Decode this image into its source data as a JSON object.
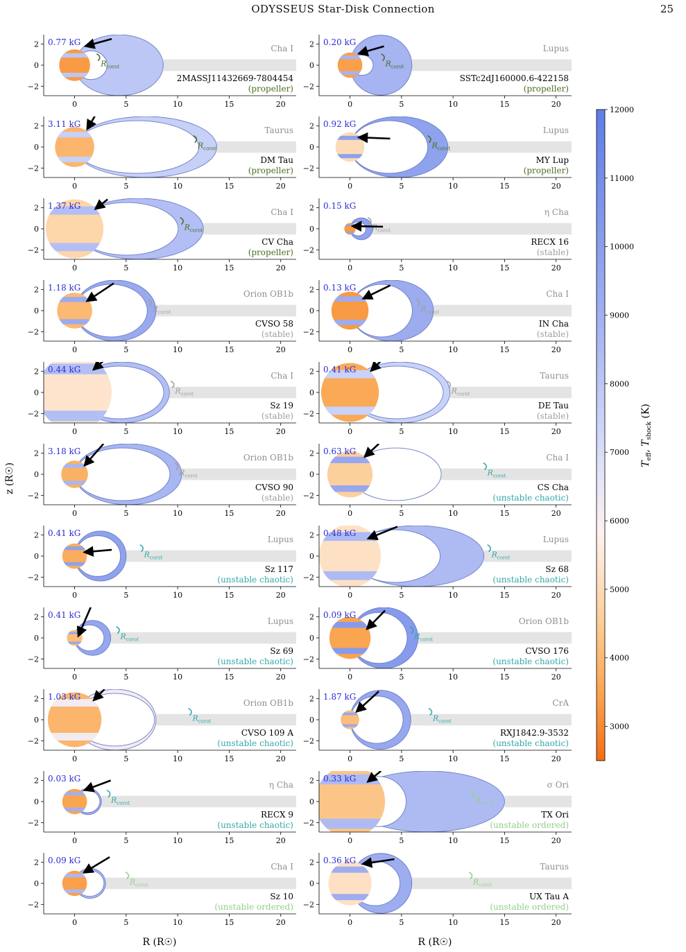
{
  "header": {
    "running_head": "ODYSSEUS Star-Disk Connection",
    "page_number": "25"
  },
  "axes": {
    "xlabel": "R (R☉)",
    "ylabel": "z (R☉)",
    "xticks": [
      0,
      5,
      10,
      15,
      20
    ],
    "yticks": [
      -2,
      0,
      2
    ],
    "xlim": [
      -3,
      21.5
    ],
    "ylim": [
      -2.9,
      2.9
    ],
    "rcorot_label": "R",
    "rcorot_sub": "corot"
  },
  "colorbar": {
    "label_html": "T_eff, T_shock (K)",
    "label_main": "T",
    "label_sub1": "eff",
    "label_sep": ", T",
    "label_sub2": "shock",
    "label_unit": " (K)",
    "ticks": [
      3000,
      4000,
      5000,
      6000,
      7000,
      8000,
      9000,
      10000,
      11000,
      12000
    ],
    "range": [
      2500,
      12000
    ]
  },
  "regime_colors": {
    "propeller": "#4b6e24",
    "stable": "#9e9e9e",
    "unstable chaotic": "#34a7a7",
    "unstable ordered": "#92cf8a"
  },
  "panels": [
    {
      "b": "0.77 kG",
      "region": "Cha I",
      "name": "2MASSJ11432669-7804454",
      "regime": "propeller",
      "rstar": 1.5,
      "tstar": 3300,
      "rin": 3.1,
      "rout": 8.6,
      "tshock": 8000,
      "rc": 2.4,
      "spot": 0.5,
      "arrow": [
        1.4,
        1.9,
        3.6,
        2.5
      ]
    },
    {
      "b": "0.20 kG",
      "region": "Lupus",
      "name": "SSTc2dJ160000.6-422158",
      "regime": "propeller",
      "rstar": 1.2,
      "tstar": 3400,
      "rin": 2.2,
      "rout": 6.0,
      "tshock": 8800,
      "rc": 3.3,
      "spot": 0.45,
      "arrow": [
        1.2,
        1.2,
        3.3,
        1.8
      ]
    },
    {
      "b": "3.11 kG",
      "region": "Taurus",
      "name": "DM Tau",
      "regime": "propeller",
      "rstar": 1.9,
      "tstar": 3900,
      "rin": 12.0,
      "rout": 13.8,
      "tshock": 7600,
      "rc": 11.8,
      "spot": 0.75,
      "arrow": [
        1.4,
        2.0,
        2.0,
        3.0
      ]
    },
    {
      "b": "0.92 kG",
      "region": "Lupus",
      "name": "MY Lup",
      "regime": "propeller",
      "rstar": 1.4,
      "tstar": 5000,
      "rin": 7.5,
      "rout": 9.5,
      "tshock": 9800,
      "rc": 7.8,
      "spot": 0.5,
      "arrow": [
        1.2,
        0.9,
        3.9,
        0.8
      ]
    },
    {
      "b": "1.37 kG",
      "region": "Cha I",
      "name": "CV Cha",
      "regime": "propeller",
      "rstar": 2.8,
      "tstar": 4800,
      "rin": 10.0,
      "rout": 12.5,
      "tshock": 8300,
      "rc": 10.5,
      "spot": 1.2,
      "arrow": [
        2.3,
        2.1,
        3.2,
        2.8
      ]
    },
    {
      "b": "0.15 kG",
      "region": "η Cha",
      "name": "RECX 16",
      "regime": "stable",
      "rstar": 0.55,
      "tstar": 3300,
      "rin": 1.5,
      "rout": 2.2,
      "tshock": 9800,
      "rc": 2.0,
      "spot": 0.25,
      "arrow": [
        0.6,
        0.25,
        3.2,
        0.2
      ]
    },
    {
      "b": "1.18 kG",
      "region": "Orion OB1b",
      "name": "CVSO 58",
      "regime": "stable",
      "rstar": 1.7,
      "tstar": 4000,
      "rin": 7.0,
      "rout": 7.9,
      "tshock": 9300,
      "rc": 7.4,
      "spot": 0.8,
      "arrow": [
        1.5,
        1.1,
        3.8,
        2.6
      ]
    },
    {
      "b": "0.13 kG",
      "region": "Cha I",
      "name": "IN Cha",
      "regime": "stable",
      "rstar": 1.8,
      "tstar": 3300,
      "rin": 6.0,
      "rout": 8.1,
      "tshock": 9200,
      "rc": 6.7,
      "spot": 0.85,
      "arrow": [
        1.6,
        1.3,
        3.9,
        2.4
      ]
    },
    {
      "b": "0.44 kG",
      "region": "Cha I",
      "name": "Sz 19",
      "regime": "stable",
      "rstar": 3.6,
      "tstar": 5300,
      "rin": 8.6,
      "rout": 9.2,
      "tshock": 8300,
      "rc": 9.6,
      "spot": 1.6,
      "arrow": [
        2.1,
        2.4,
        2.8,
        3.0
      ]
    },
    {
      "b": "0.41 kG",
      "region": "Taurus",
      "name": "DE Tau",
      "regime": "stable",
      "rstar": 2.8,
      "tstar": 3600,
      "rin": 9.0,
      "rout": 9.7,
      "tshock": 7500,
      "rc": 9.7,
      "spot": 1.3,
      "arrow": [
        2.3,
        2.3,
        3.0,
        3.0
      ]
    },
    {
      "b": "3.18 kG",
      "region": "Orion OB1b",
      "name": "CVSO 90",
      "regime": "stable",
      "rstar": 1.3,
      "tstar": 3800,
      "rin": 9.2,
      "rout": 10.4,
      "tshock": 8700,
      "rc": 10.0,
      "spot": 0.55,
      "arrow": [
        1.2,
        1.1,
        2.8,
        2.9
      ]
    },
    {
      "b": "0.63 kG",
      "region": "Cha I",
      "name": "CS Cha",
      "regime": "unstable chaotic",
      "rstar": 2.2,
      "tstar": 4600,
      "rin": 8.8,
      "rout": 8.8,
      "tshock": 9400,
      "rc": 13.2,
      "spot": 0.95,
      "arrow": [
        1.7,
        1.9,
        2.8,
        2.9
      ]
    },
    {
      "b": "0.41 kG",
      "region": "Lupus",
      "name": "Sz 117",
      "regime": "unstable chaotic",
      "rstar": 1.2,
      "tstar": 3700,
      "rin": 4.4,
      "rout": 5.0,
      "tshock": 9800,
      "rc": 6.6,
      "spot": 0.5,
      "arrow": [
        1.3,
        0.4,
        3.6,
        0.6
      ]
    },
    {
      "b": "0.48 kG",
      "region": "Lupus",
      "name": "Sz 68",
      "regime": "unstable chaotic",
      "rstar": 3.0,
      "tstar": 5200,
      "rin": 8.7,
      "rout": 13.0,
      "tshock": 8500,
      "rc": 13.6,
      "spot": 1.3,
      "arrow": [
        2.1,
        1.8,
        4.6,
        2.8
      ]
    },
    {
      "b": "0.41 kG",
      "region": "Lupus",
      "name": "Sz 69",
      "regime": "unstable chaotic",
      "rstar": 0.75,
      "tstar": 4100,
      "rin": 2.8,
      "rout": 3.5,
      "tshock": 9500,
      "rc": 4.3,
      "spot": 0.35,
      "arrow": [
        0.5,
        0.5,
        1.6,
        3.0
      ]
    },
    {
      "b": "0.09 kG",
      "region": "Orion OB1b",
      "name": "CVSO 176",
      "regime": "unstable chaotic",
      "rstar": 2.0,
      "tstar": 3500,
      "rin": 5.5,
      "rout": 6.6,
      "tshock": 10200,
      "rc": 6.1,
      "spot": 0.9,
      "arrow": [
        1.9,
        1.1,
        3.4,
        2.6
      ]
    },
    {
      "b": "1.03 kG",
      "region": "Orion OB1b",
      "name": "CVSO 109 A",
      "regime": "unstable chaotic",
      "rstar": 2.6,
      "tstar": 3900,
      "rin": 7.7,
      "rout": 7.9,
      "tshock": 6200,
      "rc": 11.3,
      "spot": 1.2,
      "arrow": [
        2.1,
        2.1,
        2.9,
        2.9
      ]
    },
    {
      "b": "1.87 kG",
      "region": "CrA",
      "name": "RXJ1842.9-3532",
      "regime": "unstable chaotic",
      "rstar": 0.9,
      "tstar": 4100,
      "rin": 5.1,
      "rout": 5.9,
      "tshock": 9400,
      "rc": 7.9,
      "spot": 0.4,
      "arrow": [
        0.9,
        1.0,
        2.8,
        2.7
      ]
    },
    {
      "b": "0.03 kG",
      "region": "η Cha",
      "name": "RECX 9",
      "regime": "unstable chaotic",
      "rstar": 1.2,
      "tstar": 3500,
      "rin": 2.4,
      "rout": 2.6,
      "tshock": 9000,
      "rc": 3.4,
      "spot": 0.5,
      "arrow": [
        1.3,
        1.2,
        3.5,
        2.0
      ]
    },
    {
      "b": "0.33 kG",
      "region": "σ Ori",
      "name": "TX Ori",
      "regime": "unstable ordered",
      "rstar": 3.4,
      "tstar": 4300,
      "rin": 5.4,
      "rout": 15.0,
      "tshock": 8500,
      "rc": 12.0,
      "spot": 1.6,
      "arrow": [
        2.0,
        2.1,
        3.0,
        2.9
      ]
    },
    {
      "b": "0.09 kG",
      "region": "Cha I",
      "name": "Sz 10",
      "regime": "unstable ordered",
      "rstar": 1.2,
      "tstar": 3400,
      "rin": 2.8,
      "rout": 3.0,
      "tshock": 8600,
      "rc": 5.2,
      "spot": 0.55,
      "arrow": [
        1.2,
        1.2,
        3.4,
        2.5
      ]
    },
    {
      "b": "0.36 kG",
      "region": "Taurus",
      "name": "UX Tau A",
      "regime": "unstable ordered",
      "rstar": 2.1,
      "tstar": 5200,
      "rin": 4.8,
      "rout": 6.0,
      "tshock": 9100,
      "rc": 11.8,
      "spot": 0.9,
      "arrow": [
        1.6,
        1.9,
        4.3,
        2.3
      ]
    }
  ]
}
